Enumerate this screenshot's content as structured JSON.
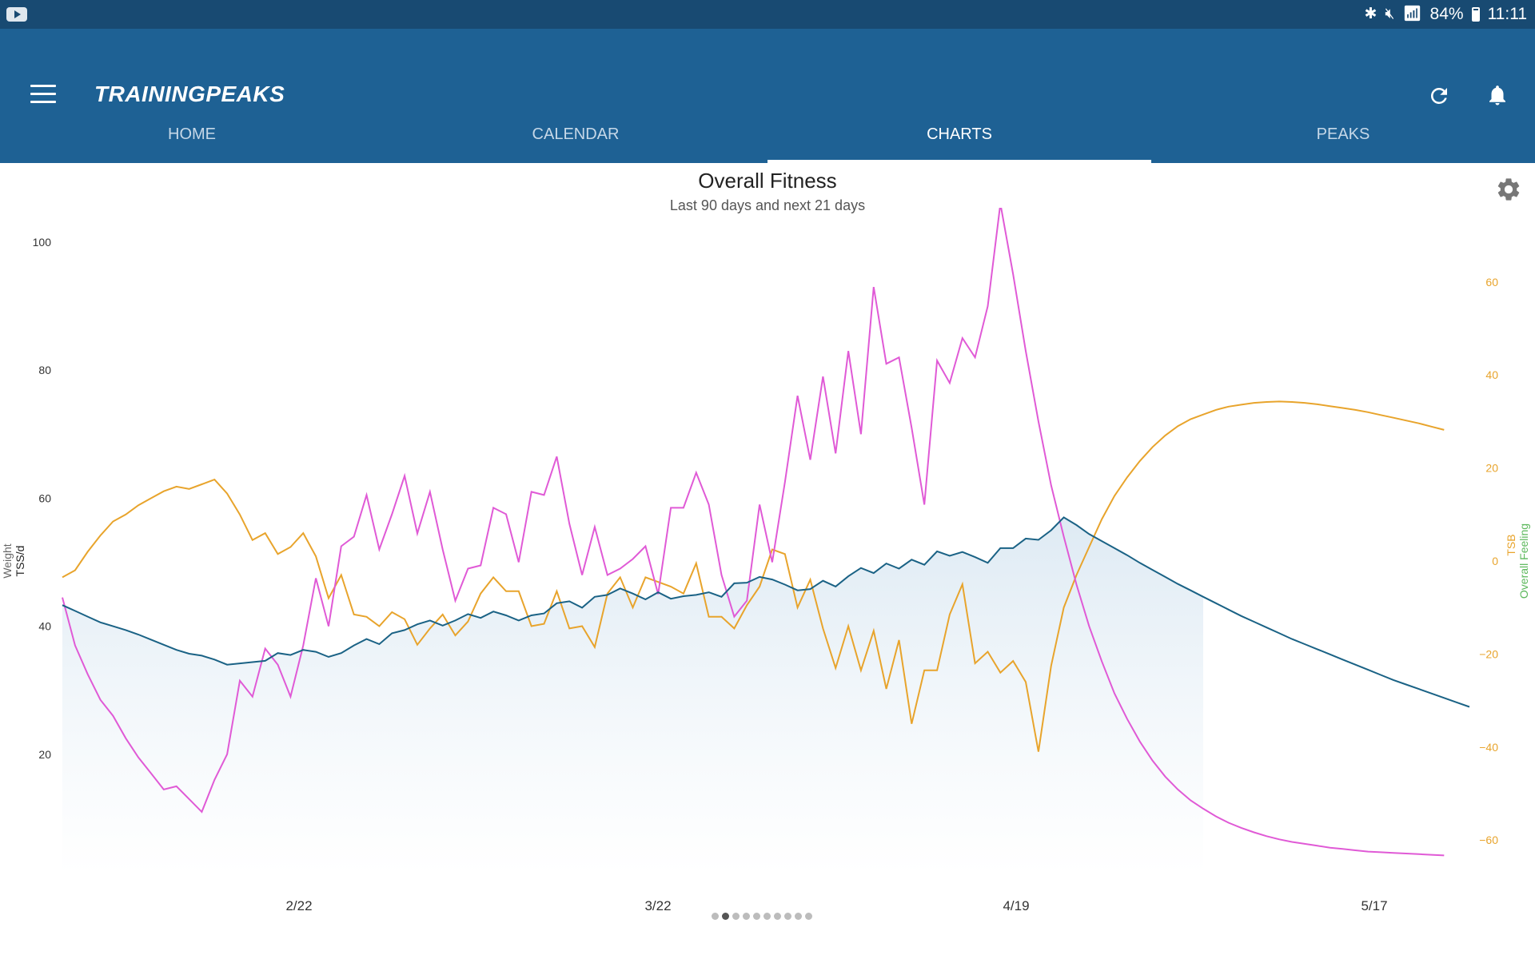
{
  "status_bar": {
    "battery": "84%",
    "time": "11:11"
  },
  "app": {
    "logo": "TRAININGPEAKS"
  },
  "tabs": [
    {
      "label": "HOME",
      "active": false
    },
    {
      "label": "CALENDAR",
      "active": false
    },
    {
      "label": "CHARTS",
      "active": true
    },
    {
      "label": "PEAKS",
      "active": false
    }
  ],
  "icons": {
    "menu": "hamburger-icon",
    "refresh": "refresh-icon",
    "notifications": "bell-icon",
    "settings": "gear-icon"
  },
  "colors": {
    "app_bar": "#1e6194",
    "status_bar": "#184a72",
    "ctl": "#1a6285",
    "atl": "#e05ad6",
    "tsb": "#e8a42c",
    "overall_feeling": "#5cb85c"
  },
  "pager": {
    "count": 10,
    "active": 1
  },
  "chart_data": {
    "type": "line",
    "title": "Overall Fitness",
    "subtitle": "Last 90 days and next 21 days",
    "x_tick_labels": [
      "2/22",
      "3/22",
      "4/19",
      "5/17"
    ],
    "y_left": {
      "labels": [
        "Weight",
        "TSS/d"
      ],
      "ticks": [
        20,
        40,
        60,
        80,
        100
      ],
      "range": [
        0,
        105
      ]
    },
    "y_right": {
      "labels": [
        "TSB",
        "Overall Feeling"
      ],
      "ticks": [
        -60,
        -40,
        -20,
        0,
        20,
        40,
        60
      ],
      "range": [
        -60,
        62
      ]
    },
    "series": [
      {
        "key": "ctl",
        "axis": "left",
        "filled": true,
        "values": [
          43.3,
          42.4,
          41.5,
          40.6,
          40.0,
          39.4,
          38.7,
          37.9,
          37.1,
          36.3,
          35.7,
          35.4,
          34.8,
          34.0,
          34.2,
          34.4,
          34.6,
          35.8,
          35.5,
          36.3,
          36.0,
          35.2,
          35.8,
          37.0,
          38.0,
          37.2,
          38.9,
          39.4,
          40.3,
          40.9,
          40.1,
          40.9,
          41.9,
          41.3,
          42.3,
          41.7,
          40.9,
          41.7,
          42.0,
          43.6,
          43.9,
          42.9,
          44.6,
          44.9,
          45.9,
          45.1,
          44.2,
          45.3,
          44.3,
          44.7,
          44.9,
          45.3,
          44.6,
          46.7,
          46.8,
          47.7,
          47.3,
          46.5,
          45.6,
          45.8,
          47.1,
          46.2,
          47.8,
          49.1,
          48.3,
          49.8,
          49.0,
          50.4,
          49.6,
          51.7,
          51.0,
          51.6,
          50.8,
          49.9,
          52.2,
          52.2,
          53.7,
          53.5,
          55.0,
          57.0,
          55.8,
          54.4,
          53.3,
          52.2,
          51.1,
          49.9,
          48.8,
          47.7,
          46.6,
          45.6,
          44.6,
          43.6,
          42.6,
          41.6,
          40.7,
          39.8,
          38.9,
          38.0,
          37.2,
          36.4,
          35.6,
          34.8,
          34.0,
          33.2,
          32.4,
          31.6,
          30.9,
          30.2,
          29.5,
          28.8,
          28.1,
          27.4
        ]
      },
      {
        "key": "atl",
        "axis": "left",
        "filled": false,
        "values": [
          44.5,
          37.0,
          32.5,
          28.5,
          26.0,
          22.5,
          19.5,
          17.0,
          14.5,
          15.0,
          13.0,
          11.0,
          16.0,
          20.0,
          31.5,
          29.0,
          36.5,
          34.0,
          29.0,
          37.0,
          47.5,
          40.0,
          52.5,
          54.0,
          60.5,
          52.0,
          57.5,
          63.5,
          54.5,
          61.0,
          52.0,
          44.0,
          49.0,
          49.5,
          58.5,
          57.5,
          50.0,
          61.0,
          60.5,
          66.5,
          56.0,
          48.0,
          55.5,
          48.0,
          49.0,
          50.5,
          52.5,
          45.0,
          58.5,
          58.5,
          64.0,
          59.0,
          48.0,
          41.5,
          44.0,
          59.0,
          50.0,
          62.5,
          76.0,
          66.0,
          79.0,
          67.0,
          83.0,
          70.0,
          93.0,
          81.0,
          82.0,
          71.0,
          59.0,
          81.5,
          78.0,
          85.0,
          82.0,
          90.0,
          106.0,
          95.0,
          83.0,
          72.0,
          62.0,
          54.0,
          46.5,
          40.0,
          34.5,
          29.5,
          25.5,
          22.0,
          19.0,
          16.5,
          14.5,
          12.8,
          11.5,
          10.3,
          9.3,
          8.5,
          7.8,
          7.2,
          6.7,
          6.3,
          6.0,
          5.7,
          5.4,
          5.2,
          5.0,
          4.8,
          4.7,
          4.6,
          4.5,
          4.4,
          4.3,
          4.2
        ]
      },
      {
        "key": "tsb",
        "axis": "right",
        "filled": false,
        "values": [
          -3.5,
          -2.0,
          2.0,
          5.5,
          8.5,
          10.0,
          12.0,
          13.5,
          15.0,
          16.0,
          15.5,
          16.5,
          17.5,
          14.5,
          10.0,
          4.5,
          6.0,
          1.5,
          3.0,
          6.0,
          1.0,
          -8.0,
          -3.0,
          -11.5,
          -12.0,
          -14.0,
          -11.0,
          -12.5,
          -18.0,
          -14.5,
          -11.5,
          -16.0,
          -13.0,
          -7.0,
          -3.5,
          -6.5,
          -6.5,
          -14.0,
          -13.5,
          -6.5,
          -14.5,
          -14.0,
          -18.5,
          -7.0,
          -3.5,
          -10.0,
          -3.5,
          -4.5,
          -5.5,
          -7.0,
          -0.5,
          -12.0,
          -12.0,
          -14.5,
          -9.5,
          -5.5,
          2.5,
          1.5,
          -10.0,
          -4.0,
          -14.5,
          -23.0,
          -14.0,
          -23.5,
          -15.0,
          -27.5,
          -17.0,
          -35.0,
          -23.5,
          -23.5,
          -11.5,
          -5.0,
          -22.0,
          -19.5,
          -24.0,
          -21.5,
          -26.0,
          -41.0,
          -22.5,
          -10.0,
          -3.0,
          3.0,
          9.0,
          14.0,
          18.0,
          21.5,
          24.5,
          27.0,
          29.0,
          30.5,
          31.5,
          32.5,
          33.2,
          33.6,
          34.0,
          34.2,
          34.3,
          34.2,
          34.0,
          33.7,
          33.3,
          32.9,
          32.5,
          32.0,
          31.4,
          30.8,
          30.2,
          29.6,
          28.9,
          28.2
        ]
      }
    ]
  }
}
